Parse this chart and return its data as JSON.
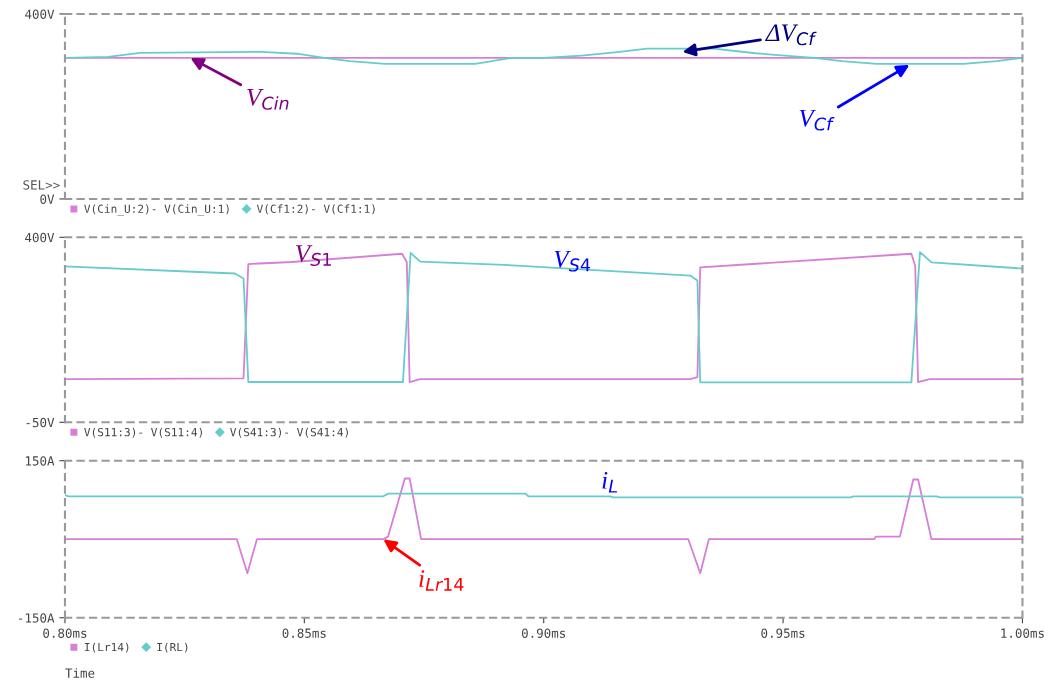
{
  "chart_data": [
    {
      "type": "line",
      "xlim": [
        0.8,
        1.0
      ],
      "ylim": [
        0,
        400
      ],
      "yticks": [
        {
          "value": 400,
          "label": "400V"
        },
        {
          "value": 0,
          "label": "0V"
        }
      ],
      "tick_labels": "y",
      "grid": false,
      "legend": "bottom",
      "marker": "none",
      "line_style": "solid",
      "series": [
        {
          "name": "V(Cin_U:2)- V(Cin_U:1)",
          "color": "#d77fd7",
          "x": [
            0.8,
            1.0
          ],
          "values": [
            305,
            305
          ]
        },
        {
          "name": "V(Cf1:2)- V(Cf1:1)",
          "color": "#66cccc",
          "x": [
            0.8,
            0.809,
            0.8157,
            0.8411,
            0.8484,
            0.8542,
            0.8595,
            0.8669,
            0.8857,
            0.8933,
            0.9,
            0.9079,
            0.9159,
            0.9216,
            0.9355,
            0.9442,
            0.9565,
            0.9623,
            0.9696,
            0.9877,
            0.9946,
            1.0
          ],
          "values": [
            305,
            307,
            316,
            318,
            314,
            305,
            298,
            292,
            292,
            305,
            305,
            310,
            318,
            325,
            325,
            315,
            305,
            298,
            292,
            292,
            298,
            305
          ]
        }
      ],
      "annotations": [
        {
          "text": "V$_{Cin}$",
          "x": 0.8262,
          "y": 305
        },
        {
          "text": "ΔV$_{Cf}$",
          "x": 0.929,
          "y": 318
        },
        {
          "text": "V$_{Cf}$",
          "x": 0.9764,
          "y": 290
        },
        "SEL>>"
      ]
    },
    {
      "type": "line",
      "xlim": [
        0.8,
        1.0
      ],
      "ylim": [
        -50,
        400
      ],
      "yticks": [
        {
          "value": 400,
          "label": "400V"
        },
        {
          "value": -50,
          "label": "-50V"
        }
      ],
      "tick_labels": "y",
      "grid": false,
      "legend": "bottom",
      "marker": "none",
      "line_style": "solid",
      "series": [
        {
          "name": "V(S11:3)- V(S11:4)",
          "color": "#d77fd7",
          "x": [
            0.8,
            0.8373,
            0.8383,
            0.8474,
            0.8704,
            0.8714,
            0.872,
            0.8742,
            0.9306,
            0.9321,
            0.9327,
            0.9768,
            0.9776,
            0.9782,
            0.9806,
            1.0
          ],
          "values": [
            55,
            57,
            335,
            340,
            360,
            340,
            48,
            55,
            55,
            60,
            327,
            360,
            330,
            48,
            55,
            55
          ]
        },
        {
          "name": "V(S41:3)- V(S41:4)",
          "color": "#66cccc",
          "x": [
            0.8,
            0.8355,
            0.8373,
            0.8383,
            0.8706,
            0.8722,
            0.8742,
            0.8917,
            0.9306,
            0.9321,
            0.9327,
            0.9768,
            0.9786,
            0.981,
            1.0
          ],
          "values": [
            329,
            312,
            300,
            48,
            48,
            362,
            341,
            333,
            307,
            295,
            47,
            47,
            364,
            339,
            324
          ]
        }
      ],
      "annotations": [
        "V$_{S1}$",
        "V$_{S4}$"
      ]
    },
    {
      "type": "line",
      "xlim": [
        0.8,
        1.0
      ],
      "ylim": [
        -150,
        150
      ],
      "yticks": [
        {
          "value": 150,
          "label": "150A"
        },
        {
          "value": -150,
          "label": "-150A"
        }
      ],
      "xticks": [
        {
          "value": 0.8,
          "label": "0.80ms"
        },
        {
          "value": 0.85,
          "label": "0.85ms"
        },
        {
          "value": 0.9,
          "label": "0.90ms"
        },
        {
          "value": 0.95,
          "label": "0.95ms"
        },
        {
          "value": 1.0,
          "label": "1.00ms"
        }
      ],
      "xlabel": "Time",
      "grid": false,
      "legend": "bottom",
      "marker": "none",
      "line_style": "solid",
      "series": [
        {
          "name": "I(Lr14)",
          "color": "#d77fd7",
          "x": [
            0.8,
            0.8359,
            0.8381,
            0.8401,
            0.8665,
            0.8675,
            0.871,
            0.872,
            0.8744,
            0.9302,
            0.9327,
            0.9345,
            0.969,
            0.9694,
            0.9744,
            0.9772,
            0.9782,
            0.981,
            1.0
          ],
          "values": [
            0,
            0,
            -65,
            0,
            0,
            5,
            116,
            116,
            0,
            0,
            -65,
            0,
            0,
            5,
            5,
            114,
            114,
            0,
            0
          ]
        },
        {
          "name": "I(RL)",
          "color": "#66cccc",
          "x": [
            0.8,
            0.8006,
            0.8665,
            0.8675,
            0.8962,
            0.8968,
            0.9139,
            0.9145,
            0.9641,
            0.9647,
            0.9821,
            0.9827,
            1.0
          ],
          "values": [
            85,
            82,
            82,
            87,
            87,
            82,
            82,
            80,
            80,
            82,
            82,
            80,
            80
          ]
        }
      ],
      "annotations": [
        "i$_{L}$",
        {
          "text": "i$_{Lr14}$",
          "x": 0.8665,
          "y": 0
        }
      ]
    }
  ]
}
